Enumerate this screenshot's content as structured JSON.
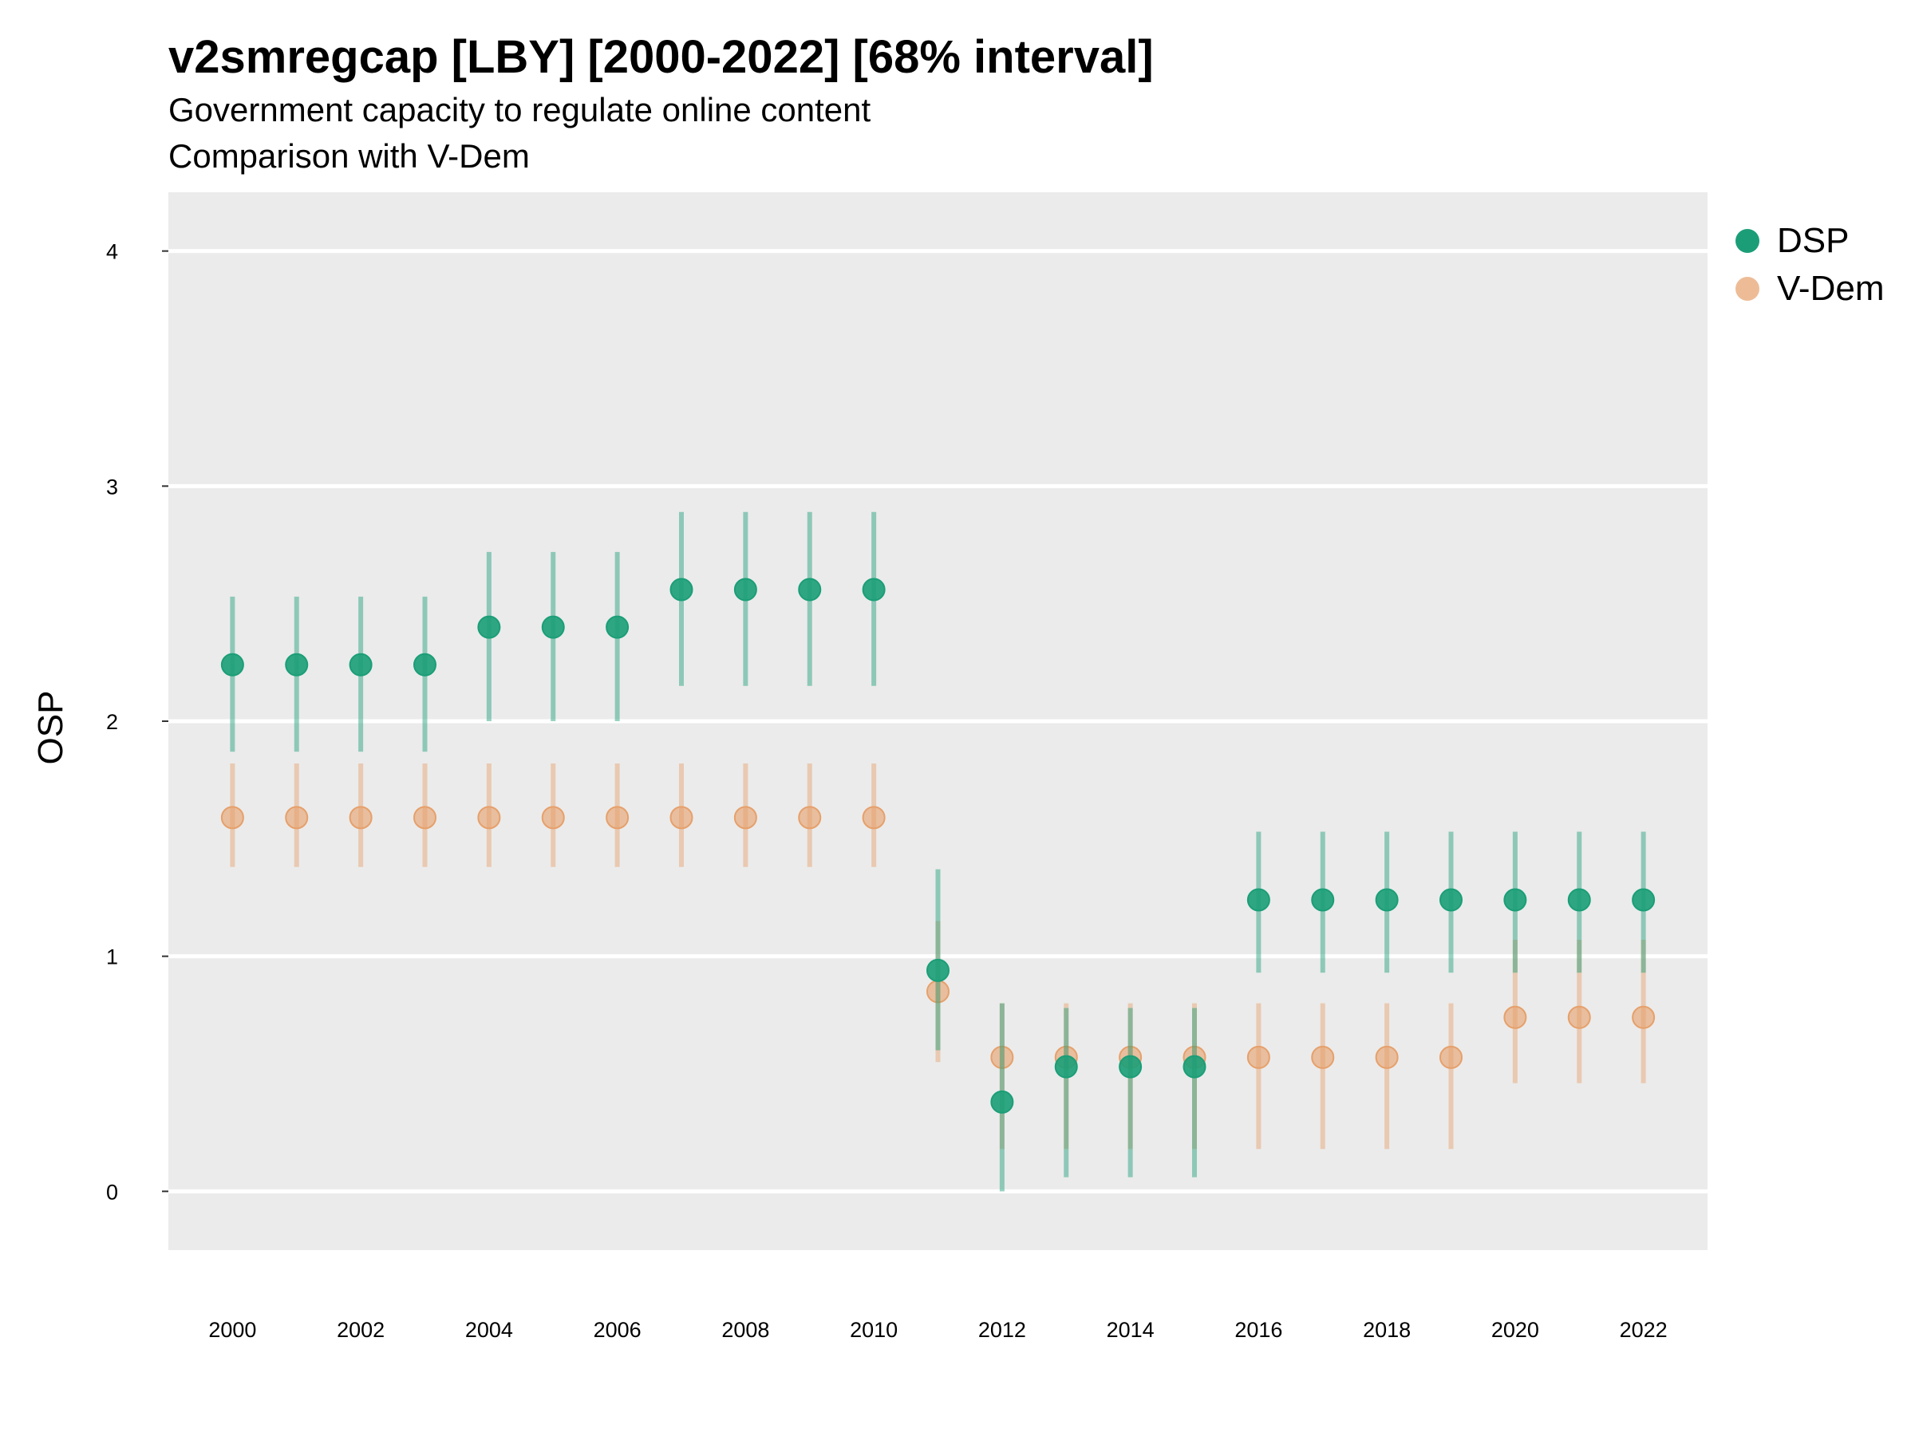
{
  "title": "v2smregcap [LBY] [2000-2022] [68% interval]",
  "subtitle": "Government capacity to regulate online content",
  "subtitle2": "Comparison with V-Dem",
  "colors": {
    "DSP": "#1b9e77",
    "V-Dem": "#e6a06b",
    "panel": "#ebebeb",
    "grid": "#ffffff"
  },
  "legend": [
    {
      "name": "DSP",
      "color": "#1b9e77"
    },
    {
      "name": "V-Dem",
      "color": "#e6a06b"
    }
  ],
  "chart_data": {
    "type": "scatter",
    "title": "v2smregcap [LBY] [2000-2022] [68% interval]",
    "ylabel": "OSP",
    "xlabel": "",
    "x": [
      2000,
      2001,
      2002,
      2003,
      2004,
      2005,
      2006,
      2007,
      2008,
      2009,
      2010,
      2011,
      2012,
      2013,
      2014,
      2015,
      2016,
      2017,
      2018,
      2019,
      2020,
      2021,
      2022
    ],
    "x_ticks": [
      2000,
      2002,
      2004,
      2006,
      2008,
      2010,
      2012,
      2014,
      2016,
      2018,
      2020,
      2022
    ],
    "y_ticks": [
      0,
      1,
      2,
      3,
      4
    ],
    "ylim": [
      -0.25,
      4.25
    ],
    "xlim": [
      1999,
      2023
    ],
    "legend_position": "right",
    "grid": true,
    "series": [
      {
        "name": "DSP",
        "values": [
          2.24,
          2.24,
          2.24,
          2.24,
          2.4,
          2.4,
          2.4,
          2.56,
          2.56,
          2.56,
          2.56,
          0.94,
          0.38,
          0.53,
          0.53,
          0.53,
          1.24,
          1.24,
          1.24,
          1.24,
          1.24,
          1.24,
          1.24
        ],
        "lower": [
          1.87,
          1.87,
          1.87,
          1.87,
          2.0,
          2.0,
          2.0,
          2.15,
          2.15,
          2.15,
          2.15,
          0.6,
          0.0,
          0.06,
          0.06,
          0.06,
          0.93,
          0.93,
          0.93,
          0.93,
          0.93,
          0.93,
          0.93
        ],
        "upper": [
          2.53,
          2.53,
          2.53,
          2.53,
          2.72,
          2.72,
          2.72,
          2.89,
          2.89,
          2.89,
          2.89,
          1.37,
          0.8,
          0.78,
          0.78,
          0.78,
          1.53,
          1.53,
          1.53,
          1.53,
          1.53,
          1.53,
          1.53
        ]
      },
      {
        "name": "V-Dem",
        "values": [
          1.59,
          1.59,
          1.59,
          1.59,
          1.59,
          1.59,
          1.59,
          1.59,
          1.59,
          1.59,
          1.59,
          0.85,
          0.57,
          0.57,
          0.57,
          0.57,
          0.57,
          0.57,
          0.57,
          0.57,
          0.74,
          0.74,
          0.74
        ],
        "lower": [
          1.38,
          1.38,
          1.38,
          1.38,
          1.38,
          1.38,
          1.38,
          1.38,
          1.38,
          1.38,
          1.38,
          0.55,
          0.18,
          0.18,
          0.18,
          0.18,
          0.18,
          0.18,
          0.18,
          0.18,
          0.46,
          0.46,
          0.46
        ],
        "upper": [
          1.82,
          1.82,
          1.82,
          1.82,
          1.82,
          1.82,
          1.82,
          1.82,
          1.82,
          1.82,
          1.82,
          1.15,
          0.8,
          0.8,
          0.8,
          0.8,
          0.8,
          0.8,
          0.8,
          0.8,
          1.07,
          1.07,
          1.07
        ]
      }
    ]
  }
}
